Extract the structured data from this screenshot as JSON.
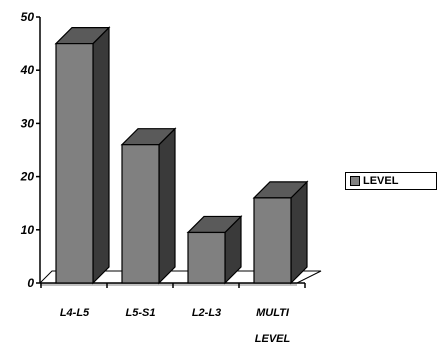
{
  "chart_data": {
    "type": "bar",
    "categories": [
      "L4-L5",
      "L5-S1",
      "L2-L3",
      "MULTI LEVEL"
    ],
    "category_lines": [
      [
        "L4-L5"
      ],
      [
        "L5-S1"
      ],
      [
        "L2-L3"
      ],
      [
        "MULTI",
        "LEVEL"
      ]
    ],
    "series": [
      {
        "name": "LEVEL",
        "values": [
          45,
          26,
          9.5,
          16
        ],
        "color": "#808080"
      }
    ],
    "ylim": [
      0,
      50
    ],
    "yticks": [
      0,
      10,
      20,
      30,
      40,
      50
    ],
    "grid": false,
    "three_d": true,
    "legend_position": "right"
  }
}
